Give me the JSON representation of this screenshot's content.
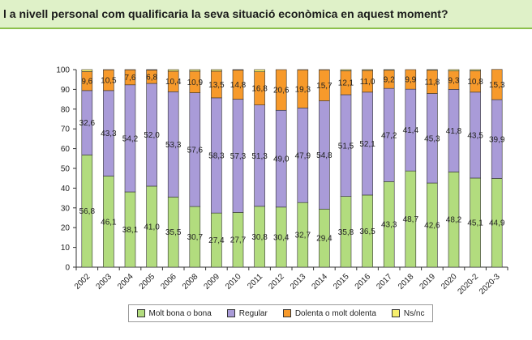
{
  "question": "l a nivell personal com qualificaria la seva situació econòmica en aquest moment?",
  "colors": {
    "good": "#b2dc7e",
    "regular": "#a99bd8",
    "bad": "#f79a2b",
    "nsnc": "#f7ef6d",
    "header_bg": "#dff1c8",
    "header_border": "#8cc04c"
  },
  "chart_data": {
    "type": "bar",
    "stacked": true,
    "title": "",
    "xlabel": "",
    "ylabel": "",
    "ylim": [
      0,
      100
    ],
    "yticks": [
      "0",
      "10",
      "20",
      "30",
      "40",
      "50",
      "60",
      "70",
      "80",
      "90",
      "100"
    ],
    "grid": false,
    "legend_position": "bottom",
    "categories": [
      "2002",
      "2003",
      "2004",
      "2005",
      "2006",
      "2008",
      "2009",
      "2010",
      "2011",
      "2012",
      "2013",
      "2014",
      "2015",
      "2016",
      "2017",
      "2018",
      "2019",
      "2020",
      "2020-2",
      "2020-3"
    ],
    "series": [
      {
        "name": "Molt bona o bona",
        "color_key": "good",
        "values": [
          56.8,
          46.1,
          38.1,
          41.0,
          35.5,
          30.7,
          27.4,
          27.7,
          30.8,
          30.4,
          32.7,
          29.4,
          35.8,
          36.5,
          43.3,
          48.7,
          42.6,
          48.2,
          45.1,
          44.9
        ],
        "labels": [
          "56,8",
          "46,1",
          "38,1",
          "41,0",
          "35,5",
          "30,7",
          "27,4",
          "27,7",
          "30,8",
          "30,4",
          "32,7",
          "29,4",
          "35,8",
          "36,5",
          "43,3",
          "48,7",
          "42,6",
          "48,2",
          "45,1",
          "44,9"
        ]
      },
      {
        "name": "Regular",
        "color_key": "regular",
        "values": [
          32.6,
          43.3,
          54.2,
          52.0,
          53.3,
          57.6,
          58.3,
          57.3,
          51.3,
          49.0,
          47.9,
          54.8,
          51.5,
          52.1,
          47.2,
          41.4,
          45.3,
          41.8,
          43.5,
          39.9
        ],
        "labels": [
          "32,6",
          "43,3",
          "54,2",
          "52,0",
          "53,3",
          "57,6",
          "58,3",
          "57,3",
          "51,3",
          "49,0",
          "47,9",
          "54,8",
          "51,5",
          "52,1",
          "47,2",
          "41,4",
          "45,3",
          "41,8",
          "43,5",
          "39,9"
        ]
      },
      {
        "name": "Dolenta o molt dolenta",
        "color_key": "bad",
        "values": [
          9.6,
          10.5,
          7.6,
          6.8,
          10.4,
          10.9,
          13.5,
          14.8,
          16.8,
          20.6,
          19.3,
          15.7,
          12.1,
          11.0,
          9.2,
          9.9,
          11.8,
          9.3,
          10.8,
          15.3
        ],
        "labels": [
          "9,6",
          "10,5",
          "7,6",
          "6,8",
          "10,4",
          "10,9",
          "13,5",
          "14,8",
          "16,8",
          "20,6",
          "19,3",
          "15,7",
          "12,1",
          "11,0",
          "9,2",
          "9,9",
          "11,8",
          "9,3",
          "10,8",
          "15,3"
        ]
      },
      {
        "name": "Ns/nc",
        "color_key": "nsnc",
        "values": [
          1.0,
          0.1,
          0.1,
          0.2,
          0.8,
          0.8,
          0.8,
          0.2,
          1.1,
          0.0,
          0.1,
          0.1,
          0.6,
          0.4,
          0.3,
          0.0,
          0.3,
          0.7,
          0.6,
          0.0
        ],
        "labels": []
      }
    ]
  }
}
